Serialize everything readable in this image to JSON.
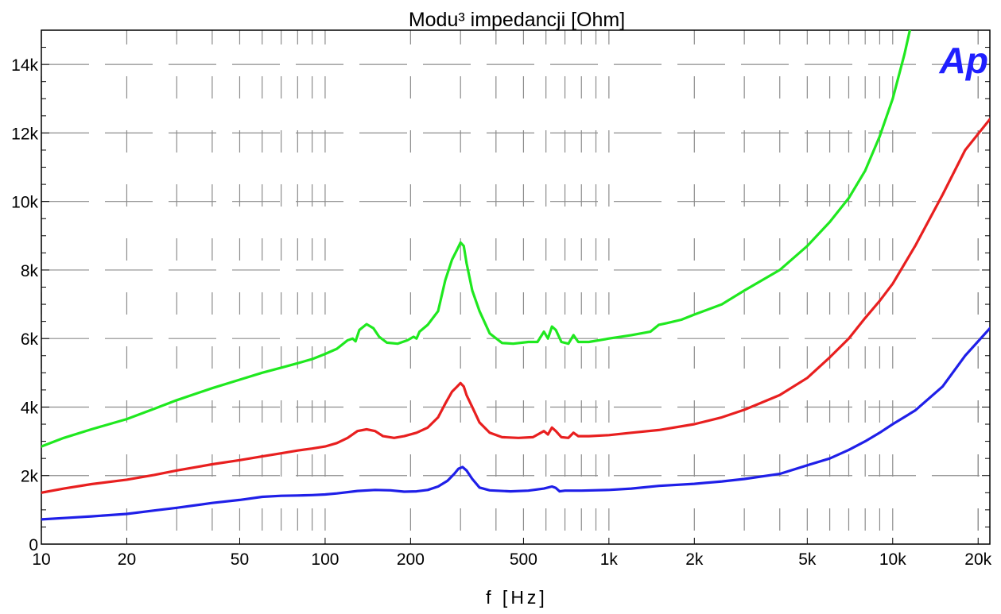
{
  "chart_data": {
    "type": "line",
    "title": "Modu³ impedancji [Ohm]",
    "xlabel": "f [Hz]",
    "ylabel": "",
    "xscale": "log",
    "xlim": [
      10,
      22000
    ],
    "ylim": [
      0,
      15000
    ],
    "grid": true,
    "logo_text": "Ap",
    "logo_color": "#1f1fff",
    "x_ticks": [
      {
        "value": 10,
        "label": "10"
      },
      {
        "value": 20,
        "label": "20"
      },
      {
        "value": 50,
        "label": "50"
      },
      {
        "value": 100,
        "label": "100"
      },
      {
        "value": 200,
        "label": "200"
      },
      {
        "value": 500,
        "label": "500"
      },
      {
        "value": 1000,
        "label": "1k"
      },
      {
        "value": 2000,
        "label": "2k"
      },
      {
        "value": 5000,
        "label": "5k"
      },
      {
        "value": 10000,
        "label": "10k"
      },
      {
        "value": 20000,
        "label": "20k"
      }
    ],
    "y_ticks": [
      {
        "value": 0,
        "label": "0"
      },
      {
        "value": 2000,
        "label": "2k"
      },
      {
        "value": 4000,
        "label": "4k"
      },
      {
        "value": 6000,
        "label": "6k"
      },
      {
        "value": 8000,
        "label": "8k"
      },
      {
        "value": 10000,
        "label": "10k"
      },
      {
        "value": 12000,
        "label": "12k"
      },
      {
        "value": 14000,
        "label": "14k"
      }
    ],
    "series": [
      {
        "color": "#1fe81f",
        "points": [
          [
            10,
            2850
          ],
          [
            12,
            3100
          ],
          [
            15,
            3350
          ],
          [
            20,
            3650
          ],
          [
            25,
            3950
          ],
          [
            30,
            4200
          ],
          [
            40,
            4550
          ],
          [
            50,
            4800
          ],
          [
            60,
            5000
          ],
          [
            70,
            5150
          ],
          [
            80,
            5280
          ],
          [
            90,
            5400
          ],
          [
            100,
            5550
          ],
          [
            110,
            5700
          ],
          [
            120,
            5950
          ],
          [
            125,
            6000
          ],
          [
            128,
            5920
          ],
          [
            132,
            6250
          ],
          [
            140,
            6420
          ],
          [
            148,
            6300
          ],
          [
            155,
            6050
          ],
          [
            165,
            5880
          ],
          [
            180,
            5850
          ],
          [
            195,
            5950
          ],
          [
            205,
            6050
          ],
          [
            210,
            6000
          ],
          [
            215,
            6200
          ],
          [
            230,
            6400
          ],
          [
            250,
            6800
          ],
          [
            265,
            7700
          ],
          [
            280,
            8300
          ],
          [
            292,
            8600
          ],
          [
            300,
            8800
          ],
          [
            308,
            8700
          ],
          [
            315,
            8200
          ],
          [
            330,
            7400
          ],
          [
            350,
            6800
          ],
          [
            380,
            6150
          ],
          [
            420,
            5870
          ],
          [
            460,
            5850
          ],
          [
            520,
            5900
          ],
          [
            560,
            5900
          ],
          [
            590,
            6200
          ],
          [
            610,
            6000
          ],
          [
            630,
            6350
          ],
          [
            650,
            6250
          ],
          [
            680,
            5900
          ],
          [
            720,
            5850
          ],
          [
            750,
            6100
          ],
          [
            780,
            5900
          ],
          [
            850,
            5900
          ],
          [
            1000,
            6000
          ],
          [
            1200,
            6100
          ],
          [
            1400,
            6200
          ],
          [
            1500,
            6400
          ],
          [
            1600,
            6450
          ],
          [
            1800,
            6550
          ],
          [
            2000,
            6700
          ],
          [
            2500,
            7000
          ],
          [
            3000,
            7400
          ],
          [
            4000,
            8000
          ],
          [
            5000,
            8700
          ],
          [
            6000,
            9400
          ],
          [
            7000,
            10100
          ],
          [
            8000,
            10900
          ],
          [
            9000,
            11900
          ],
          [
            10000,
            13000
          ],
          [
            11000,
            14300
          ],
          [
            11500,
            15000
          ]
        ]
      },
      {
        "color": "#e81f1f",
        "points": [
          [
            10,
            1500
          ],
          [
            12,
            1620
          ],
          [
            15,
            1750
          ],
          [
            20,
            1880
          ],
          [
            25,
            2020
          ],
          [
            30,
            2150
          ],
          [
            40,
            2330
          ],
          [
            50,
            2450
          ],
          [
            60,
            2560
          ],
          [
            70,
            2650
          ],
          [
            80,
            2730
          ],
          [
            90,
            2790
          ],
          [
            100,
            2850
          ],
          [
            110,
            2950
          ],
          [
            120,
            3100
          ],
          [
            130,
            3300
          ],
          [
            140,
            3350
          ],
          [
            150,
            3300
          ],
          [
            160,
            3150
          ],
          [
            175,
            3100
          ],
          [
            190,
            3150
          ],
          [
            210,
            3250
          ],
          [
            230,
            3400
          ],
          [
            250,
            3700
          ],
          [
            265,
            4100
          ],
          [
            280,
            4450
          ],
          [
            292,
            4600
          ],
          [
            300,
            4700
          ],
          [
            308,
            4600
          ],
          [
            315,
            4350
          ],
          [
            330,
            4000
          ],
          [
            350,
            3550
          ],
          [
            380,
            3250
          ],
          [
            420,
            3120
          ],
          [
            480,
            3100
          ],
          [
            540,
            3120
          ],
          [
            590,
            3300
          ],
          [
            610,
            3200
          ],
          [
            630,
            3400
          ],
          [
            650,
            3300
          ],
          [
            680,
            3120
          ],
          [
            720,
            3100
          ],
          [
            750,
            3250
          ],
          [
            780,
            3150
          ],
          [
            850,
            3150
          ],
          [
            1000,
            3180
          ],
          [
            1200,
            3250
          ],
          [
            1500,
            3330
          ],
          [
            2000,
            3500
          ],
          [
            2500,
            3700
          ],
          [
            3000,
            3920
          ],
          [
            4000,
            4350
          ],
          [
            5000,
            4850
          ],
          [
            6000,
            5450
          ],
          [
            7000,
            6000
          ],
          [
            8000,
            6600
          ],
          [
            9000,
            7100
          ],
          [
            10000,
            7600
          ],
          [
            12000,
            8700
          ],
          [
            15000,
            10200
          ],
          [
            18000,
            11500
          ],
          [
            22000,
            12400
          ]
        ]
      },
      {
        "color": "#1f1fe8",
        "points": [
          [
            10,
            720
          ],
          [
            12,
            760
          ],
          [
            15,
            810
          ],
          [
            20,
            880
          ],
          [
            25,
            980
          ],
          [
            30,
            1060
          ],
          [
            40,
            1200
          ],
          [
            50,
            1290
          ],
          [
            60,
            1380
          ],
          [
            70,
            1410
          ],
          [
            80,
            1420
          ],
          [
            90,
            1430
          ],
          [
            100,
            1450
          ],
          [
            110,
            1480
          ],
          [
            130,
            1550
          ],
          [
            150,
            1580
          ],
          [
            170,
            1570
          ],
          [
            190,
            1530
          ],
          [
            210,
            1540
          ],
          [
            230,
            1580
          ],
          [
            250,
            1680
          ],
          [
            270,
            1850
          ],
          [
            285,
            2050
          ],
          [
            295,
            2200
          ],
          [
            305,
            2250
          ],
          [
            315,
            2150
          ],
          [
            330,
            1900
          ],
          [
            350,
            1650
          ],
          [
            380,
            1570
          ],
          [
            450,
            1540
          ],
          [
            520,
            1560
          ],
          [
            590,
            1620
          ],
          [
            630,
            1680
          ],
          [
            650,
            1640
          ],
          [
            670,
            1540
          ],
          [
            700,
            1560
          ],
          [
            800,
            1560
          ],
          [
            1000,
            1580
          ],
          [
            1200,
            1620
          ],
          [
            1500,
            1700
          ],
          [
            2000,
            1760
          ],
          [
            2500,
            1830
          ],
          [
            3000,
            1900
          ],
          [
            4000,
            2050
          ],
          [
            5000,
            2300
          ],
          [
            6000,
            2500
          ],
          [
            7000,
            2750
          ],
          [
            8000,
            3000
          ],
          [
            9000,
            3250
          ],
          [
            10000,
            3500
          ],
          [
            12000,
            3900
          ],
          [
            15000,
            4600
          ],
          [
            18000,
            5500
          ],
          [
            22000,
            6300
          ]
        ]
      }
    ]
  }
}
